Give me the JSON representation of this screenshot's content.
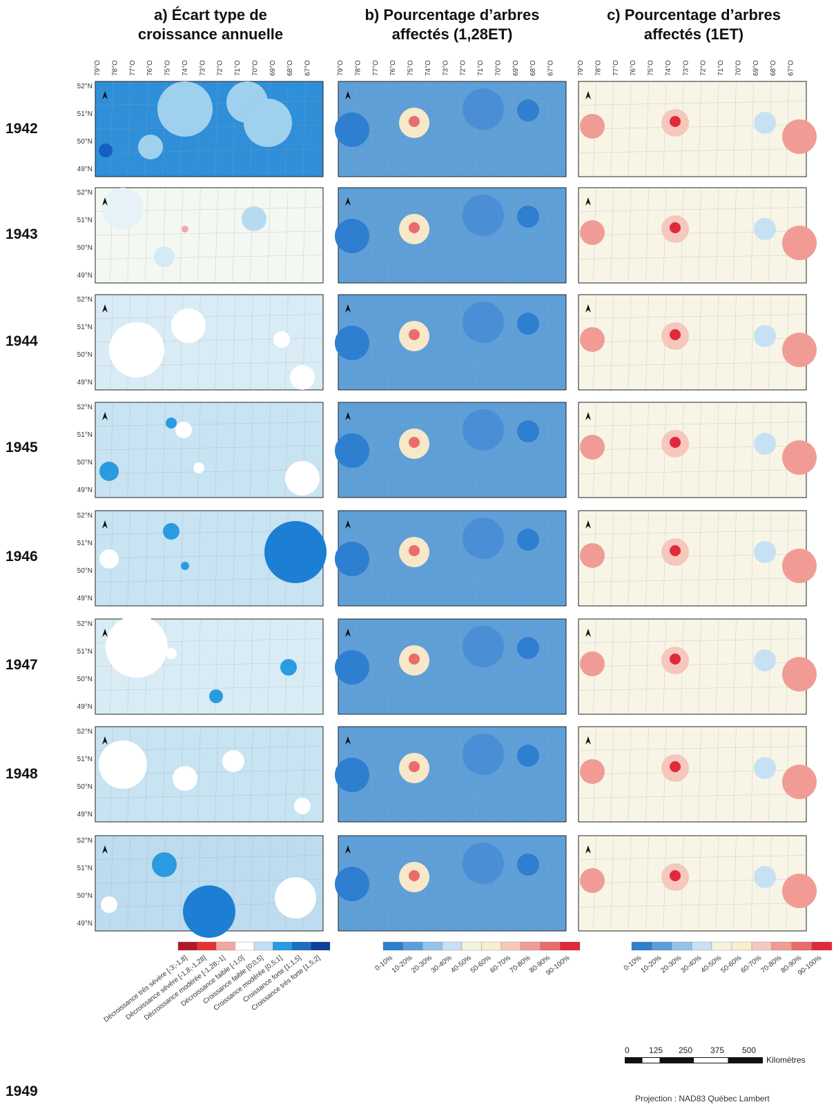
{
  "columns": [
    {
      "title": "a) Écart type de\ncroissance annuelle",
      "key": "a"
    },
    {
      "title": "b) Pourcentage d’arbres\naffectés (1,28ET)",
      "key": "b"
    },
    {
      "title": "c) Pourcentage d’arbres\naffectés (1ET)",
      "key": "c"
    }
  ],
  "years": [
    "1942",
    "1943",
    "1944",
    "1945",
    "1946",
    "1947",
    "1948",
    "1949"
  ],
  "longitude_labels": [
    "79°O",
    "78°O",
    "77°O",
    "76°O",
    "75°O",
    "74°O",
    "73°O",
    "72°O",
    "71°O",
    "70°O",
    "69°O",
    "68°O",
    "67°O"
  ],
  "latitude_labels": [
    "52°N",
    "51°N",
    "50°N",
    "49°N"
  ],
  "north_arrow_label": "N",
  "palette": {
    "a_background_by_year": [
      "#2f8fd8",
      "#f4f8f2",
      "#d9ecf5",
      "#c8e3f1",
      "#c8e3f1",
      "#d9ecf5",
      "#c8e3f1",
      "#bddcef"
    ],
    "b_background": "#5f9fd8",
    "c_background": "#f8f5e6"
  },
  "legend_a": {
    "labels": [
      "Décroissance très sévère [-3;-1,8]",
      "Décroissance sévère [-1,8;-1,28]",
      "Décroissance modérée [-1,28;-1]",
      "Décroissance faible [-1;0]",
      "Croissance faible [0;0,5]",
      "Croissance modérée [0,5;1]",
      "Croissance forte [1;1,5]",
      "Croissance très forte [1,5;2]"
    ],
    "colors": [
      "#b2182b",
      "#e63232",
      "#f4a6a6",
      "#ffffff",
      "#bfe0f2",
      "#2a9be0",
      "#1a6fc4",
      "#0b3f9a"
    ]
  },
  "legend_pct": {
    "labels": [
      "0-10%",
      "10-20%",
      "20-30%",
      "30-40%",
      "40-50%",
      "50-60%",
      "60-70%",
      "70-80%",
      "80-90%",
      "90-100%"
    ],
    "colors": [
      "#2f7fd0",
      "#5a9fdc",
      "#93c3ea",
      "#c6e1f3",
      "#f3f4de",
      "#f9efcc",
      "#f6c7bc",
      "#f09c95",
      "#ea6c6c",
      "#e02a3a"
    ]
  },
  "scale_bar": {
    "ticks": [
      "0",
      "125",
      "250",
      "375",
      "500"
    ],
    "unit": "Kilomètres"
  },
  "projection": "Projection : NAD83 Québec Lambert"
}
